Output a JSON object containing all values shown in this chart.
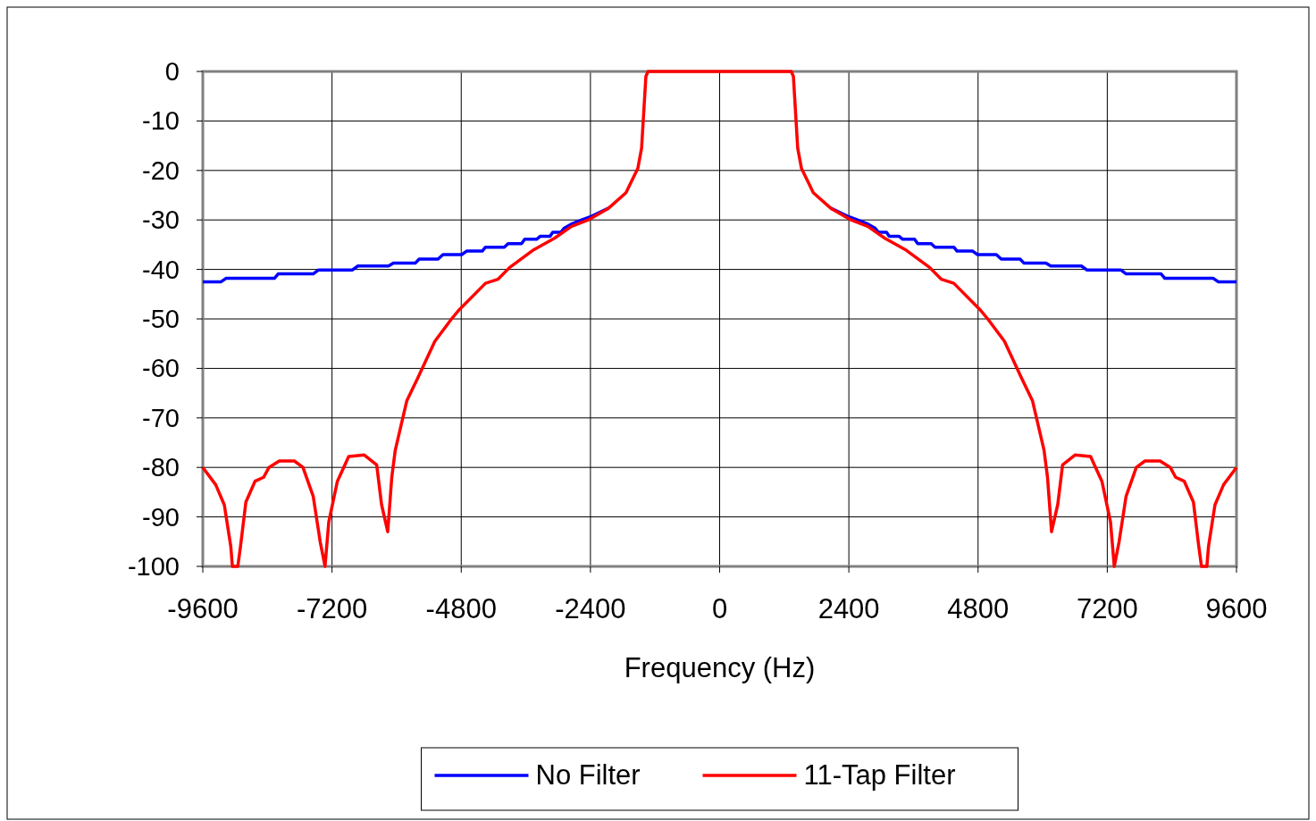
{
  "chart_data": {
    "type": "line",
    "xlabel": "Frequency (Hz)",
    "xlim": [
      -9600,
      9600
    ],
    "xticks": [
      -9600,
      -7200,
      -4800,
      -2400,
      0,
      2400,
      4800,
      7200,
      9600
    ],
    "ylim": [
      -100,
      0
    ],
    "yticks": [
      0,
      -10,
      -20,
      -30,
      -40,
      -50,
      -60,
      -70,
      -80,
      -90,
      -100
    ],
    "grid": true,
    "legend": "bottom",
    "marker": "none",
    "line_style": "solid",
    "series": [
      {
        "name": "No Filter",
        "color": "#0000ff",
        "x": [
          -9600,
          -9260,
          -9170,
          -8270,
          -8200,
          -7550,
          -7450,
          -6820,
          -6720,
          -6150,
          -6060,
          -5650,
          -5580,
          -5230,
          -5140,
          -4790,
          -4700,
          -4410,
          -4350,
          -4000,
          -3930,
          -3680,
          -3620,
          -3400,
          -3330,
          -3150,
          -3100,
          -2950,
          -2890,
          -2750,
          -2560,
          -2370,
          -2060,
          0,
          2060,
          2370,
          2560,
          2750,
          2890,
          2950,
          3100,
          3150,
          3330,
          3400,
          3620,
          3680,
          3930,
          4000,
          4350,
          4410,
          4700,
          4790,
          5140,
          5230,
          5580,
          5650,
          6060,
          6150,
          6720,
          6820,
          7450,
          7550,
          8200,
          8270,
          9170,
          9260,
          9600
        ],
        "values": [
          -42.5,
          -42.5,
          -41.8,
          -41.8,
          -40.9,
          -40.9,
          -40.1,
          -40.1,
          -39.3,
          -39.3,
          -38.7,
          -38.7,
          -37.9,
          -37.9,
          -37,
          -37,
          -36.3,
          -36.3,
          -35.5,
          -35.5,
          -34.8,
          -34.8,
          -33.9,
          -33.9,
          -33.3,
          -33.3,
          -32.5,
          -32.5,
          -31.7,
          -30.8,
          -30,
          -29.2,
          -27.6,
          null,
          -27.6,
          -29.2,
          -30,
          -30.8,
          -31.7,
          -32.5,
          -32.5,
          -33.3,
          -33.3,
          -33.9,
          -33.9,
          -34.8,
          -34.8,
          -35.5,
          -35.5,
          -36.3,
          -36.3,
          -37,
          -37,
          -37.9,
          -37.9,
          -38.7,
          -38.7,
          -39.3,
          -39.3,
          -40.1,
          -40.1,
          -40.9,
          -40.9,
          -41.8,
          -41.8,
          -42.5,
          -42.5
        ]
      },
      {
        "name": "11-Tap Filter",
        "color": "#ff0000",
        "x": [
          -9600,
          -9360,
          -9200,
          -9080,
          -9050,
          -8950,
          -8900,
          -8800,
          -8630,
          -8470,
          -8370,
          -8180,
          -7900,
          -7740,
          -7550,
          -7420,
          -7330,
          -7260,
          -7100,
          -6890,
          -6600,
          -6370,
          -6280,
          -6165,
          -6090,
          -6025,
          -5810,
          -5610,
          -5290,
          -4980,
          -4850,
          -4350,
          -4120,
          -3900,
          -3450,
          -3070,
          -2750,
          -2440,
          -2060,
          -1740,
          -1520,
          -1450,
          -1370,
          -1330,
          1330,
          1370,
          1450,
          1520,
          1740,
          2060,
          2440,
          2750,
          3070,
          3450,
          3900,
          4120,
          4350,
          4850,
          4980,
          5290,
          5610,
          5810,
          6025,
          6090,
          6165,
          6280,
          6370,
          6600,
          6890,
          7100,
          7260,
          7330,
          7420,
          7550,
          7740,
          7900,
          8180,
          8370,
          8470,
          8630,
          8800,
          8900,
          8950,
          9050,
          9080,
          9200,
          9360,
          9600
        ],
        "values": [
          -80,
          -83.5,
          -87.6,
          -96,
          -100,
          -100,
          -96,
          -87,
          -82.8,
          -82,
          -80,
          -78.7,
          -78.7,
          -80,
          -85.8,
          -95,
          -100,
          -91,
          -82.8,
          -77.8,
          -77.5,
          -79.5,
          -87.5,
          -93,
          -82,
          -76.5,
          -66.5,
          -62,
          -54.5,
          -50,
          -48.3,
          -42.8,
          -42,
          -39.6,
          -36,
          -33.7,
          -31.3,
          -30,
          -27.6,
          -24.5,
          -19.6,
          -15.5,
          -1,
          0,
          0,
          -1,
          -15.5,
          -19.6,
          -24.5,
          -27.6,
          -30,
          -31.3,
          -33.7,
          -36,
          -39.6,
          -42,
          -42.8,
          -48.3,
          -50,
          -54.5,
          -62,
          -66.5,
          -76.5,
          -82,
          -93,
          -87.5,
          -79.5,
          -77.5,
          -77.8,
          -82.8,
          -91,
          -100,
          -95,
          -85.8,
          -80,
          -78.7,
          -78.7,
          -80,
          -82,
          -82.8,
          -87,
          -96,
          -100,
          -100,
          -96,
          -87.6,
          -83.5,
          -80
        ]
      }
    ]
  }
}
